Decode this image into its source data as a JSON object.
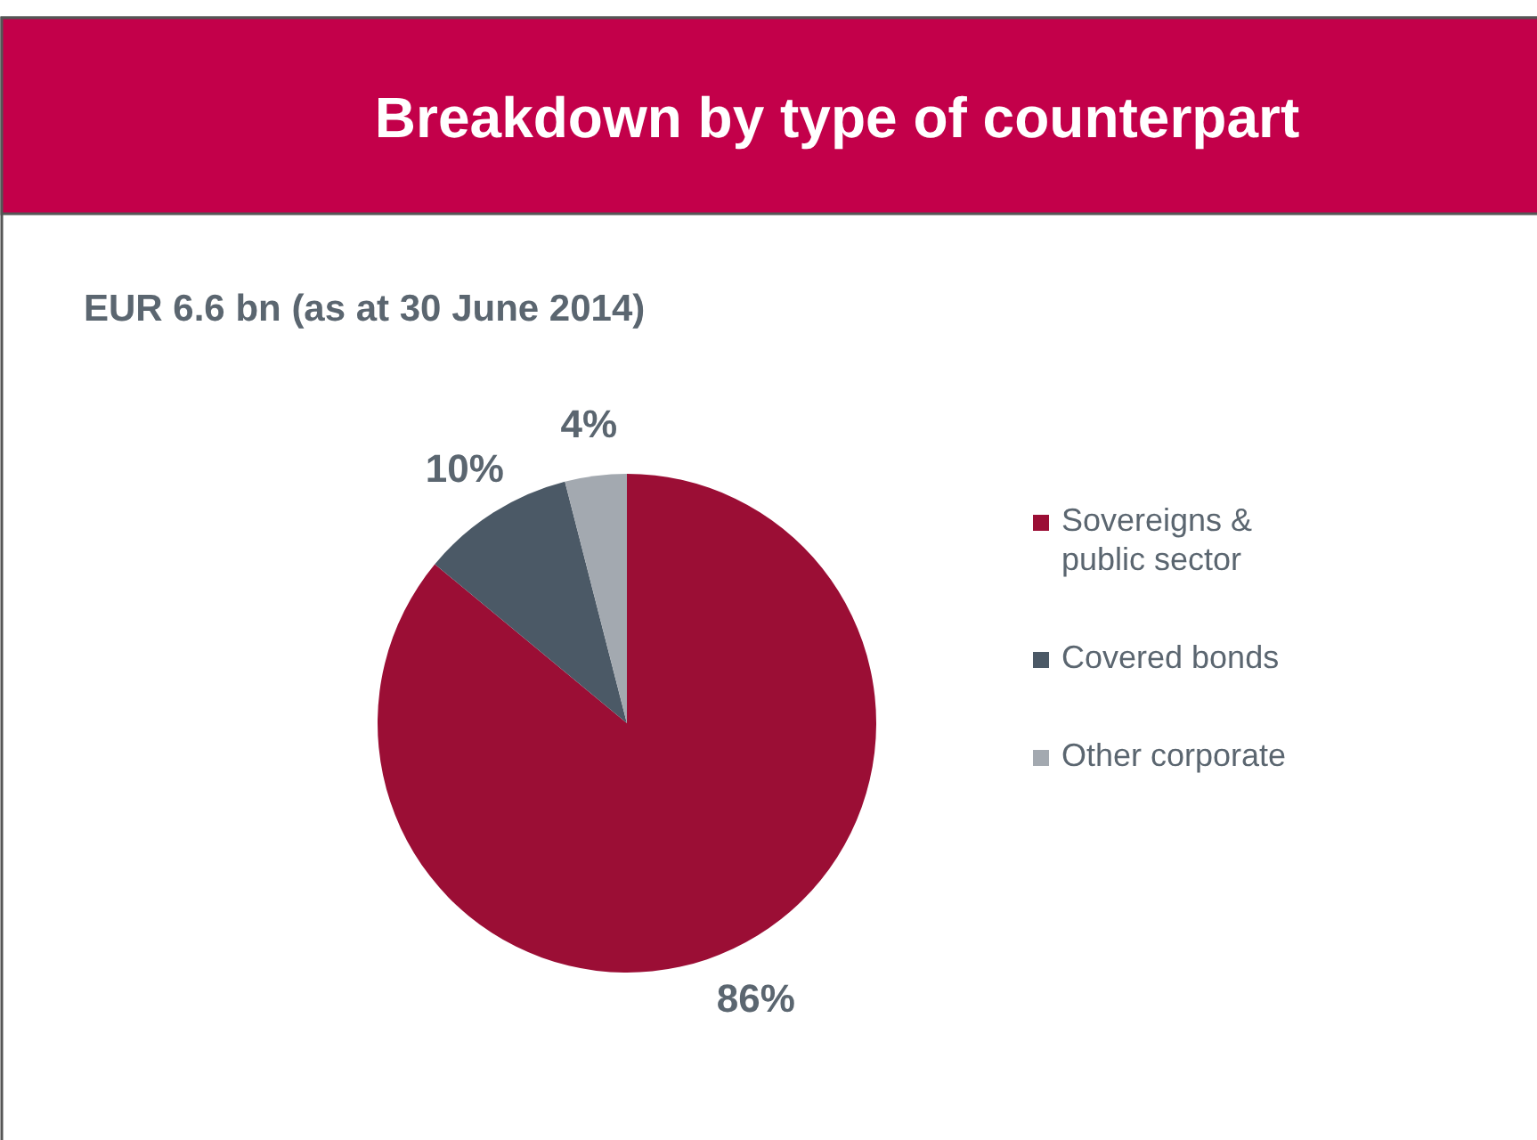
{
  "chart_data": {
    "type": "pie",
    "title": "Breakdown by type of counterpart",
    "subtitle": "EUR 6.6 bn (as at 30 June  2014)",
    "categories": [
      "Sovereigns & public sector",
      "Covered bonds",
      "Other corporate"
    ],
    "values": [
      86,
      10,
      4
    ],
    "colors": [
      "#9b0e35",
      "#4b5966",
      "#a3a9b0"
    ],
    "value_labels": [
      "86%",
      "10%",
      "4%"
    ],
    "legend": "right"
  }
}
